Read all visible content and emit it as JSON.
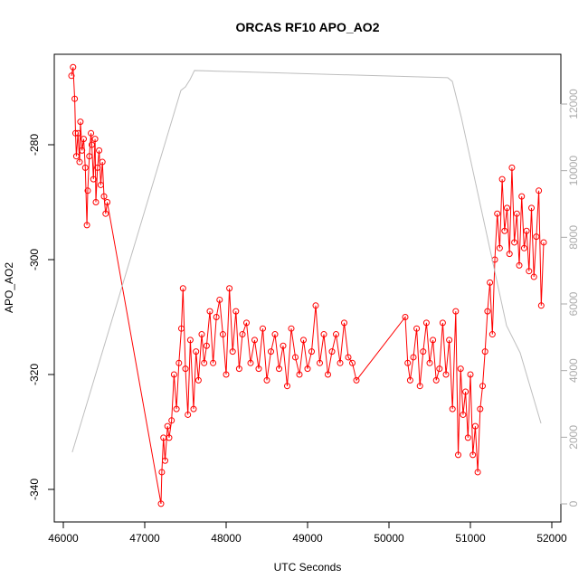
{
  "chart_data": {
    "type": "line",
    "title": "ORCAS RF10 APO_AO2",
    "xlabel": "UTC Seconds",
    "ylabel": "APO_AO2",
    "xlim": [
      45889,
      52111
    ],
    "ylim": [
      -345.67,
      -264.25
    ],
    "y2lim": [
      -543,
      13493
    ],
    "xticks": [
      46000,
      47000,
      48000,
      49000,
      50000,
      51000,
      52000
    ],
    "yticks": [
      -280,
      -300,
      -320,
      -340
    ],
    "y2ticks": [
      0,
      2000,
      4000,
      6000,
      8000,
      10000,
      12000
    ],
    "y2tick_color": "#aaaaaa",
    "series": [
      {
        "color": "#ff0000",
        "markers": true,
        "x": [
          46100,
          46120,
          46140,
          46150,
          46160,
          46180,
          46200,
          46210,
          46230,
          46250,
          46270,
          46290,
          46300,
          46320,
          46340,
          46350,
          46370,
          46390,
          46400,
          46420,
          46440,
          46460,
          46480,
          46500,
          46520,
          46540,
          47200,
          47210,
          47230,
          47250,
          47280,
          47300,
          47330,
          47360,
          47390,
          47420,
          47450,
          47470,
          47500,
          47530,
          47560,
          47600,
          47630,
          47660,
          47700,
          47730,
          47760,
          47800,
          47840,
          47880,
          47920,
          47960,
          48000,
          48040,
          48080,
          48120,
          48160,
          48200,
          48250,
          48300,
          48350,
          48400,
          48450,
          48500,
          48550,
          48600,
          48650,
          48700,
          48750,
          48800,
          48850,
          48900,
          48950,
          49000,
          49050,
          49100,
          49150,
          49200,
          49250,
          49300,
          49350,
          49400,
          49450,
          49500,
          49550,
          49600,
          50200,
          50230,
          50260,
          50300,
          50340,
          50380,
          50420,
          50460,
          50500,
          50540,
          50580,
          50620,
          50660,
          50700,
          50740,
          50780,
          50820,
          50850,
          50880,
          50910,
          50940,
          50970,
          51000,
          51030,
          51060,
          51090,
          51120,
          51150,
          51180,
          51210,
          51240,
          51270,
          51300,
          51330,
          51360,
          51390,
          51420,
          51450,
          51480,
          51510,
          51540,
          51570,
          51600,
          51630,
          51660,
          51690,
          51720,
          51750,
          51780,
          51810,
          51840,
          51870,
          51900
        ],
        "values": [
          -268,
          -266.5,
          -272,
          -278,
          -282,
          -278,
          -283,
          -276,
          -281,
          -279,
          -284,
          -294,
          -288,
          -282,
          -278,
          -280,
          -286,
          -279,
          -290,
          -284,
          -281,
          -287,
          -283,
          -289,
          -292,
          -290,
          -342.5,
          -337,
          -331,
          -335,
          -329,
          -331,
          -328,
          -320,
          -326,
          -318,
          -312,
          -305,
          -319,
          -327,
          -314,
          -326,
          -316,
          -321,
          -313,
          -318,
          -315,
          -309,
          -318,
          -310,
          -307,
          -313,
          -320,
          -305,
          -316,
          -309,
          -319,
          -313,
          -311,
          -318,
          -314,
          -319,
          -312,
          -321,
          -316,
          -313,
          -319,
          -315,
          -322,
          -312,
          -317,
          -320,
          -314,
          -319,
          -316,
          -308,
          -318,
          -313,
          -320,
          -316,
          -313,
          -318,
          -311,
          -317,
          -318,
          -321,
          -310,
          -318,
          -321,
          -317,
          -312,
          -322,
          -316,
          -311,
          -318,
          -314,
          -321,
          -319,
          -311,
          -320,
          -314,
          -326,
          -309,
          -334,
          -319,
          -327,
          -323,
          -331,
          -320,
          -334,
          -329,
          -337,
          -326,
          -322,
          -316,
          -309,
          -304,
          -313,
          -300,
          -292,
          -298,
          -286,
          -295,
          -291,
          -299,
          -284,
          -297,
          -292,
          -301,
          -289,
          -298,
          -295,
          -302,
          -291,
          -303,
          -296,
          -288,
          -308,
          -297
        ]
      },
      {
        "color": "#bebebe",
        "axis": "y2",
        "markers": false,
        "x": [
          46110,
          47444,
          47500,
          47556,
          47611,
          50722,
          50778,
          50889,
          51444,
          51611,
          51867
        ],
        "values": [
          1550,
          12408,
          12516,
          12733,
          13006,
          12789,
          12680,
          11594,
          5349,
          4534,
          2416
        ]
      }
    ]
  }
}
